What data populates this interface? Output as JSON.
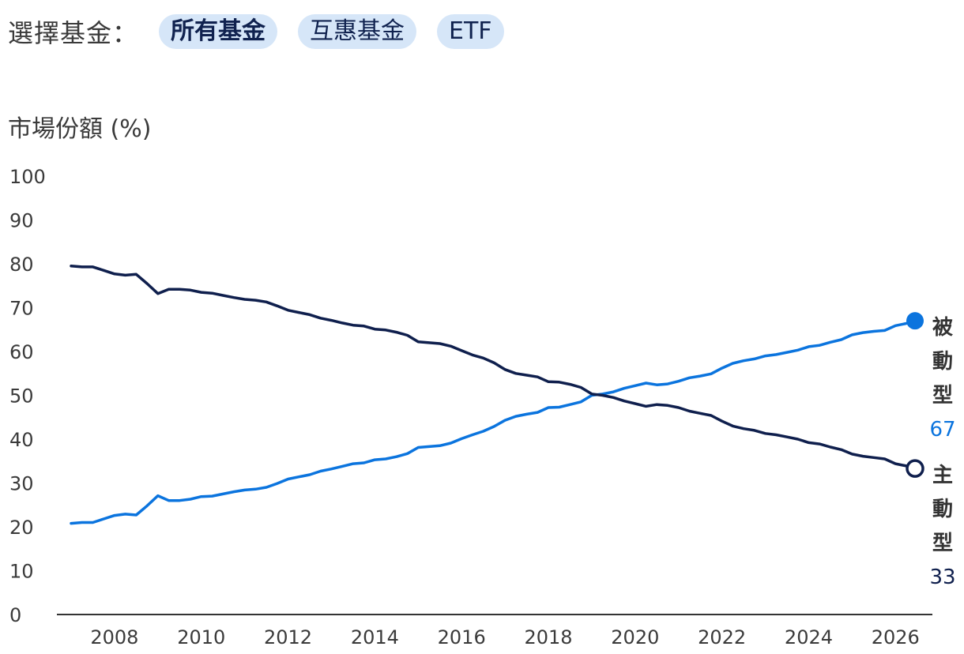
{
  "filter": {
    "label": "選擇基金：",
    "options": [
      {
        "label": "所有基金",
        "active": true
      },
      {
        "label": "互惠基金",
        "active": false
      },
      {
        "label": "ETF",
        "active": false
      }
    ]
  },
  "colors": {
    "passive": "#0b74de",
    "active": "#0f1f4d",
    "pill_bg": "#d6e6f8",
    "axis": "#333333"
  },
  "chart_data": {
    "type": "line",
    "ylabel": "市場份額 (%)",
    "ylim": [
      0,
      100
    ],
    "yticks": [
      0,
      10,
      20,
      30,
      40,
      50,
      60,
      70,
      80,
      90,
      100
    ],
    "xlim": [
      2007,
      2026.45
    ],
    "xticks": [
      2008,
      2010,
      2012,
      2014,
      2016,
      2018,
      2020,
      2022,
      2024,
      2026
    ],
    "grid": false,
    "series": [
      {
        "name": "被動型",
        "end_value": "67",
        "color": "#0b74de",
        "marker": "filled-circle",
        "points": [
          [
            2007.0,
            20.8
          ],
          [
            2007.25,
            21.0
          ],
          [
            2007.5,
            21.0
          ],
          [
            2007.75,
            21.8
          ],
          [
            2008.0,
            22.6
          ],
          [
            2008.25,
            22.9
          ],
          [
            2008.5,
            22.7
          ],
          [
            2008.75,
            24.8
          ],
          [
            2009.0,
            27.1
          ],
          [
            2009.25,
            26.0
          ],
          [
            2009.5,
            26.0
          ],
          [
            2009.75,
            26.3
          ],
          [
            2010.0,
            26.9
          ],
          [
            2010.25,
            27.0
          ],
          [
            2010.5,
            27.5
          ],
          [
            2010.75,
            28.0
          ],
          [
            2011.0,
            28.4
          ],
          [
            2011.25,
            28.6
          ],
          [
            2011.5,
            29.0
          ],
          [
            2011.75,
            29.9
          ],
          [
            2012.0,
            30.9
          ],
          [
            2012.25,
            31.4
          ],
          [
            2012.5,
            31.9
          ],
          [
            2012.75,
            32.7
          ],
          [
            2013.0,
            33.2
          ],
          [
            2013.25,
            33.8
          ],
          [
            2013.5,
            34.4
          ],
          [
            2013.75,
            34.6
          ],
          [
            2014.0,
            35.3
          ],
          [
            2014.25,
            35.5
          ],
          [
            2014.5,
            36.0
          ],
          [
            2014.75,
            36.7
          ],
          [
            2015.0,
            38.1
          ],
          [
            2015.25,
            38.3
          ],
          [
            2015.5,
            38.5
          ],
          [
            2015.75,
            39.1
          ],
          [
            2016.0,
            40.1
          ],
          [
            2016.25,
            41.0
          ],
          [
            2016.5,
            41.8
          ],
          [
            2016.75,
            42.9
          ],
          [
            2017.0,
            44.3
          ],
          [
            2017.25,
            45.2
          ],
          [
            2017.5,
            45.7
          ],
          [
            2017.75,
            46.1
          ],
          [
            2018.0,
            47.2
          ],
          [
            2018.25,
            47.3
          ],
          [
            2018.5,
            47.9
          ],
          [
            2018.75,
            48.5
          ],
          [
            2019.0,
            50.0
          ],
          [
            2019.25,
            50.3
          ],
          [
            2019.5,
            50.8
          ],
          [
            2019.75,
            51.6
          ],
          [
            2020.0,
            52.2
          ],
          [
            2020.25,
            52.8
          ],
          [
            2020.5,
            52.4
          ],
          [
            2020.75,
            52.6
          ],
          [
            2021.0,
            53.2
          ],
          [
            2021.25,
            54.0
          ],
          [
            2021.5,
            54.4
          ],
          [
            2021.75,
            54.9
          ],
          [
            2022.0,
            56.2
          ],
          [
            2022.25,
            57.3
          ],
          [
            2022.5,
            57.9
          ],
          [
            2022.75,
            58.3
          ],
          [
            2023.0,
            59.0
          ],
          [
            2023.25,
            59.3
          ],
          [
            2023.5,
            59.8
          ],
          [
            2023.75,
            60.3
          ],
          [
            2024.0,
            61.1
          ],
          [
            2024.25,
            61.4
          ],
          [
            2024.5,
            62.1
          ],
          [
            2024.75,
            62.7
          ],
          [
            2025.0,
            63.8
          ],
          [
            2025.25,
            64.3
          ],
          [
            2025.5,
            64.6
          ],
          [
            2025.75,
            64.8
          ],
          [
            2026.0,
            65.9
          ],
          [
            2026.25,
            66.4
          ],
          [
            2026.45,
            67.0
          ]
        ]
      },
      {
        "name": "主動型",
        "end_value": "33",
        "color": "#0f1f4d",
        "marker": "hollow-circle",
        "points": [
          [
            2007.0,
            79.5
          ],
          [
            2007.25,
            79.3
          ],
          [
            2007.5,
            79.3
          ],
          [
            2007.75,
            78.5
          ],
          [
            2008.0,
            77.7
          ],
          [
            2008.25,
            77.4
          ],
          [
            2008.5,
            77.6
          ],
          [
            2008.75,
            75.5
          ],
          [
            2009.0,
            73.2
          ],
          [
            2009.25,
            74.2
          ],
          [
            2009.5,
            74.2
          ],
          [
            2009.75,
            74.0
          ],
          [
            2010.0,
            73.5
          ],
          [
            2010.25,
            73.3
          ],
          [
            2010.5,
            72.8
          ],
          [
            2010.75,
            72.3
          ],
          [
            2011.0,
            71.9
          ],
          [
            2011.25,
            71.7
          ],
          [
            2011.5,
            71.3
          ],
          [
            2011.75,
            70.4
          ],
          [
            2012.0,
            69.4
          ],
          [
            2012.25,
            68.9
          ],
          [
            2012.5,
            68.4
          ],
          [
            2012.75,
            67.6
          ],
          [
            2013.0,
            67.1
          ],
          [
            2013.25,
            66.5
          ],
          [
            2013.5,
            66.0
          ],
          [
            2013.75,
            65.8
          ],
          [
            2014.0,
            65.1
          ],
          [
            2014.25,
            64.9
          ],
          [
            2014.5,
            64.4
          ],
          [
            2014.75,
            63.7
          ],
          [
            2015.0,
            62.2
          ],
          [
            2015.25,
            62.0
          ],
          [
            2015.5,
            61.8
          ],
          [
            2015.75,
            61.2
          ],
          [
            2016.0,
            60.2
          ],
          [
            2016.25,
            59.2
          ],
          [
            2016.5,
            58.5
          ],
          [
            2016.75,
            57.4
          ],
          [
            2017.0,
            55.9
          ],
          [
            2017.25,
            55.0
          ],
          [
            2017.5,
            54.6
          ],
          [
            2017.75,
            54.2
          ],
          [
            2018.0,
            53.1
          ],
          [
            2018.25,
            53.0
          ],
          [
            2018.5,
            52.5
          ],
          [
            2018.75,
            51.8
          ],
          [
            2019.0,
            50.3
          ],
          [
            2019.25,
            50.0
          ],
          [
            2019.5,
            49.5
          ],
          [
            2019.75,
            48.7
          ],
          [
            2020.0,
            48.1
          ],
          [
            2020.25,
            47.5
          ],
          [
            2020.5,
            47.9
          ],
          [
            2020.75,
            47.7
          ],
          [
            2021.0,
            47.2
          ],
          [
            2021.25,
            46.4
          ],
          [
            2021.5,
            45.9
          ],
          [
            2021.75,
            45.4
          ],
          [
            2022.0,
            44.1
          ],
          [
            2022.25,
            43.0
          ],
          [
            2022.5,
            42.4
          ],
          [
            2022.75,
            42.0
          ],
          [
            2023.0,
            41.3
          ],
          [
            2023.25,
            41.0
          ],
          [
            2023.5,
            40.5
          ],
          [
            2023.75,
            40.0
          ],
          [
            2024.0,
            39.2
          ],
          [
            2024.25,
            38.9
          ],
          [
            2024.5,
            38.2
          ],
          [
            2024.75,
            37.6
          ],
          [
            2025.0,
            36.6
          ],
          [
            2025.25,
            36.1
          ],
          [
            2025.5,
            35.8
          ],
          [
            2025.75,
            35.5
          ],
          [
            2026.0,
            34.4
          ],
          [
            2026.25,
            33.9
          ],
          [
            2026.45,
            33.3
          ]
        ]
      }
    ]
  }
}
